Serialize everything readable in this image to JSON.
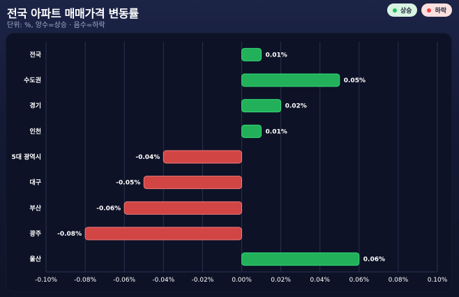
{
  "header": {
    "title": "전국 아파트 매매가격 변동률",
    "subtitle": "단위: %, 양수=상승 · 음수=하락"
  },
  "legend": {
    "up_label": "상승",
    "down_label": "하락"
  },
  "colors": {
    "up": "#22b15a",
    "up_border": "#34d878",
    "down": "#d14545",
    "down_border": "#f07a7a",
    "grid": "#2a3152"
  },
  "chart_data": {
    "type": "bar",
    "orientation": "horizontal",
    "title": "전국 아파트 매매가격 변동률",
    "categories": [
      "전국",
      "수도권",
      "경기",
      "인천",
      "5대 광역시",
      "대구",
      "부산",
      "광주",
      "울산"
    ],
    "values": [
      0.01,
      0.05,
      0.02,
      0.01,
      -0.04,
      -0.05,
      -0.06,
      -0.08,
      0.06
    ],
    "value_labels": [
      "0.01%",
      "0.05%",
      "0.02%",
      "0.01%",
      "-0.04%",
      "-0.05%",
      "-0.06%",
      "-0.08%",
      "0.06%"
    ],
    "xlim": [
      -0.1,
      0.1
    ],
    "xticks": [
      -0.1,
      -0.08,
      -0.06,
      -0.04,
      -0.02,
      0.0,
      0.02,
      0.04,
      0.06,
      0.08,
      0.1
    ],
    "xtick_labels": [
      "-0.10%",
      "-0.08%",
      "-0.06%",
      "-0.04%",
      "-0.02%",
      "0.00%",
      "0.02%",
      "0.04%",
      "0.06%",
      "0.08%",
      "0.10%"
    ],
    "xlabel": "",
    "ylabel": "",
    "grid": true,
    "legend_position": "top-right"
  }
}
